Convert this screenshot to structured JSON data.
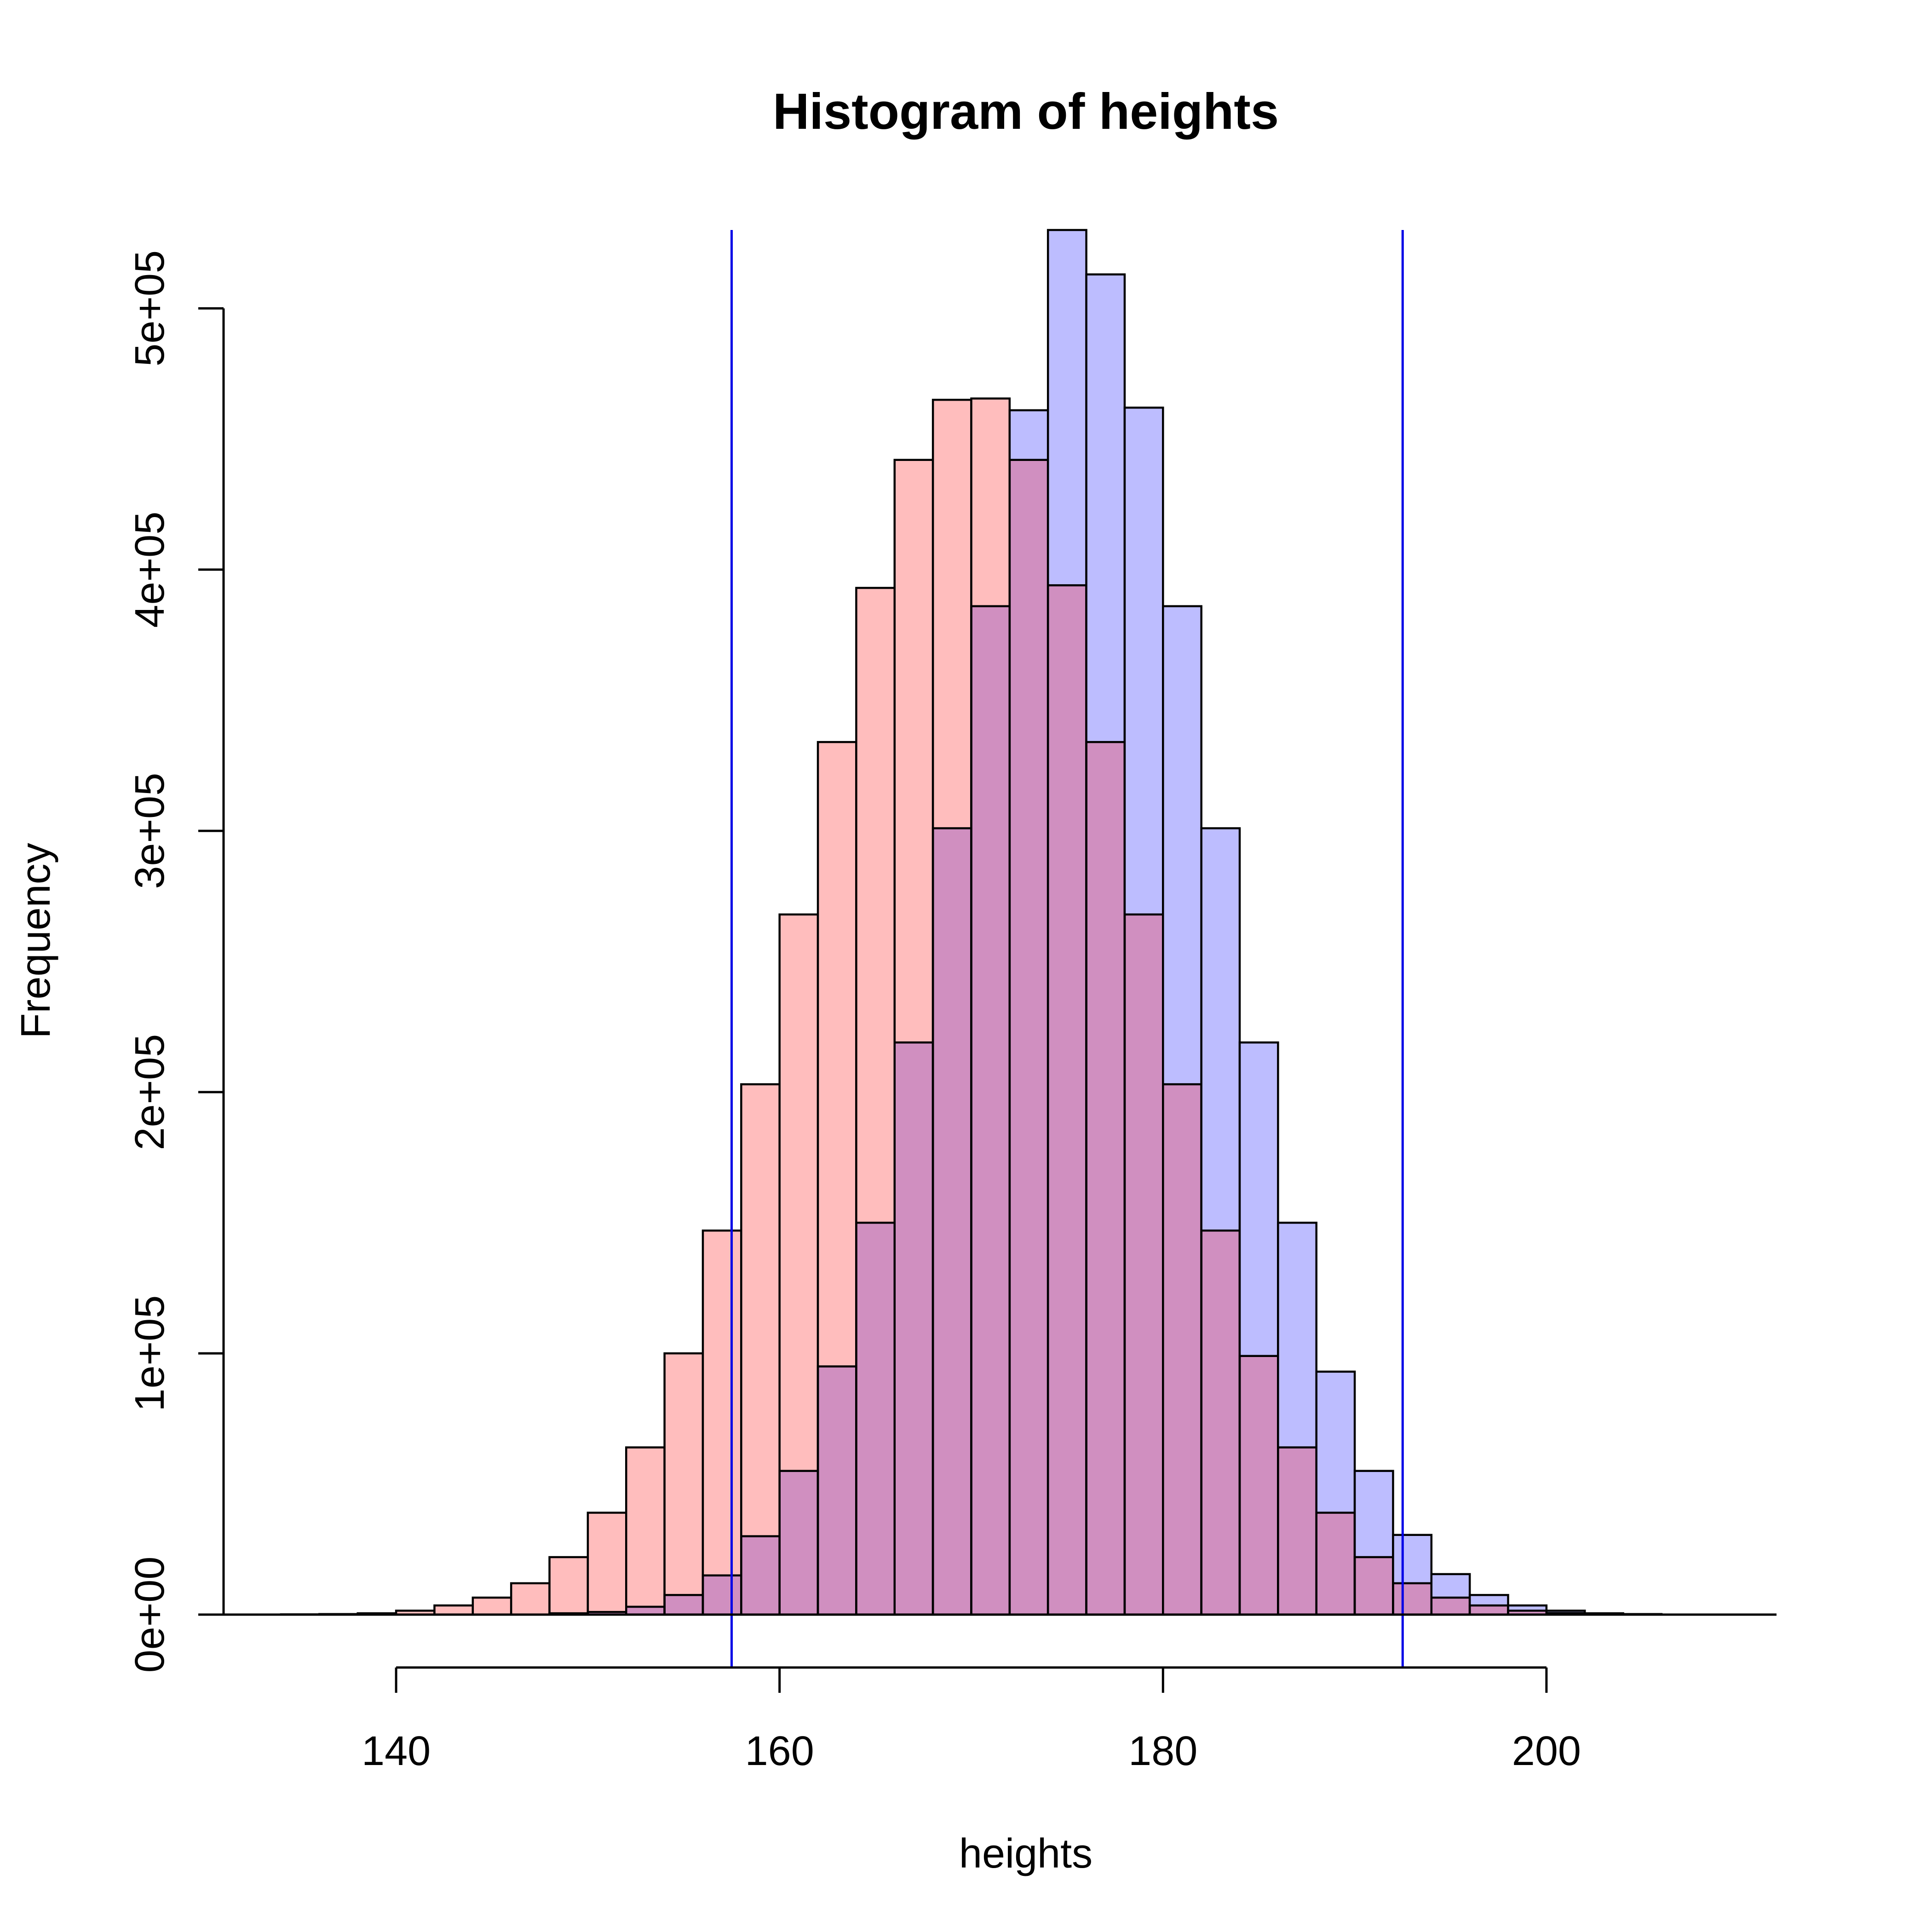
{
  "chart_data": {
    "type": "bar",
    "title": "Histogram of heights",
    "xlabel": "heights",
    "ylabel": "Frequency",
    "xlim": [
      131,
      212
    ],
    "ylim": [
      0,
      530000
    ],
    "x_ticks": [
      140,
      160,
      180,
      200
    ],
    "x_tick_labels": [
      "140",
      "160",
      "180",
      "200"
    ],
    "y_ticks": [
      0,
      100000,
      200000,
      300000,
      400000,
      500000
    ],
    "y_tick_labels": [
      "0e+00",
      "1e+05",
      "2e+05",
      "3e+05",
      "4e+05",
      "5e+05"
    ],
    "bin_edges": [
      134,
      136,
      138,
      140,
      142,
      144,
      146,
      148,
      150,
      152,
      154,
      156,
      158,
      160,
      162,
      164,
      166,
      168,
      170,
      172,
      174,
      176,
      178,
      180,
      182,
      184,
      186,
      188,
      190,
      192,
      194,
      196,
      198,
      200,
      202,
      204,
      206,
      208
    ],
    "series": [
      {
        "color": "#bdbdff",
        "values": [
          0,
          0,
          0,
          0,
          0,
          0,
          0,
          500,
          1000,
          3000,
          7500,
          15000,
          30000,
          55000,
          95000,
          150000,
          219000,
          301000,
          386000,
          461000,
          530000,
          513000,
          462000,
          386000,
          301000,
          219000,
          150000,
          93000,
          55000,
          30500,
          15500,
          7500,
          3500,
          1500,
          500,
          200,
          0
        ]
      },
      {
        "color": "#ffbdbd",
        "values": [
          100,
          200,
          500,
          1500,
          3500,
          6500,
          12000,
          22000,
          39000,
          64000,
          100000,
          147000,
          203000,
          268000,
          334000,
          393000,
          442000,
          465000,
          465500,
          442000,
          394000,
          334000,
          268000,
          203000,
          147000,
          99000,
          64000,
          39000,
          22000,
          12000,
          6500,
          3500,
          1500,
          600,
          200,
          100,
          0
        ]
      }
    ],
    "overlap_color": "#d08fc0",
    "vertical_lines": [
      157.5,
      192.5
    ],
    "vertical_line_color": "#0000e6",
    "grid": false
  }
}
